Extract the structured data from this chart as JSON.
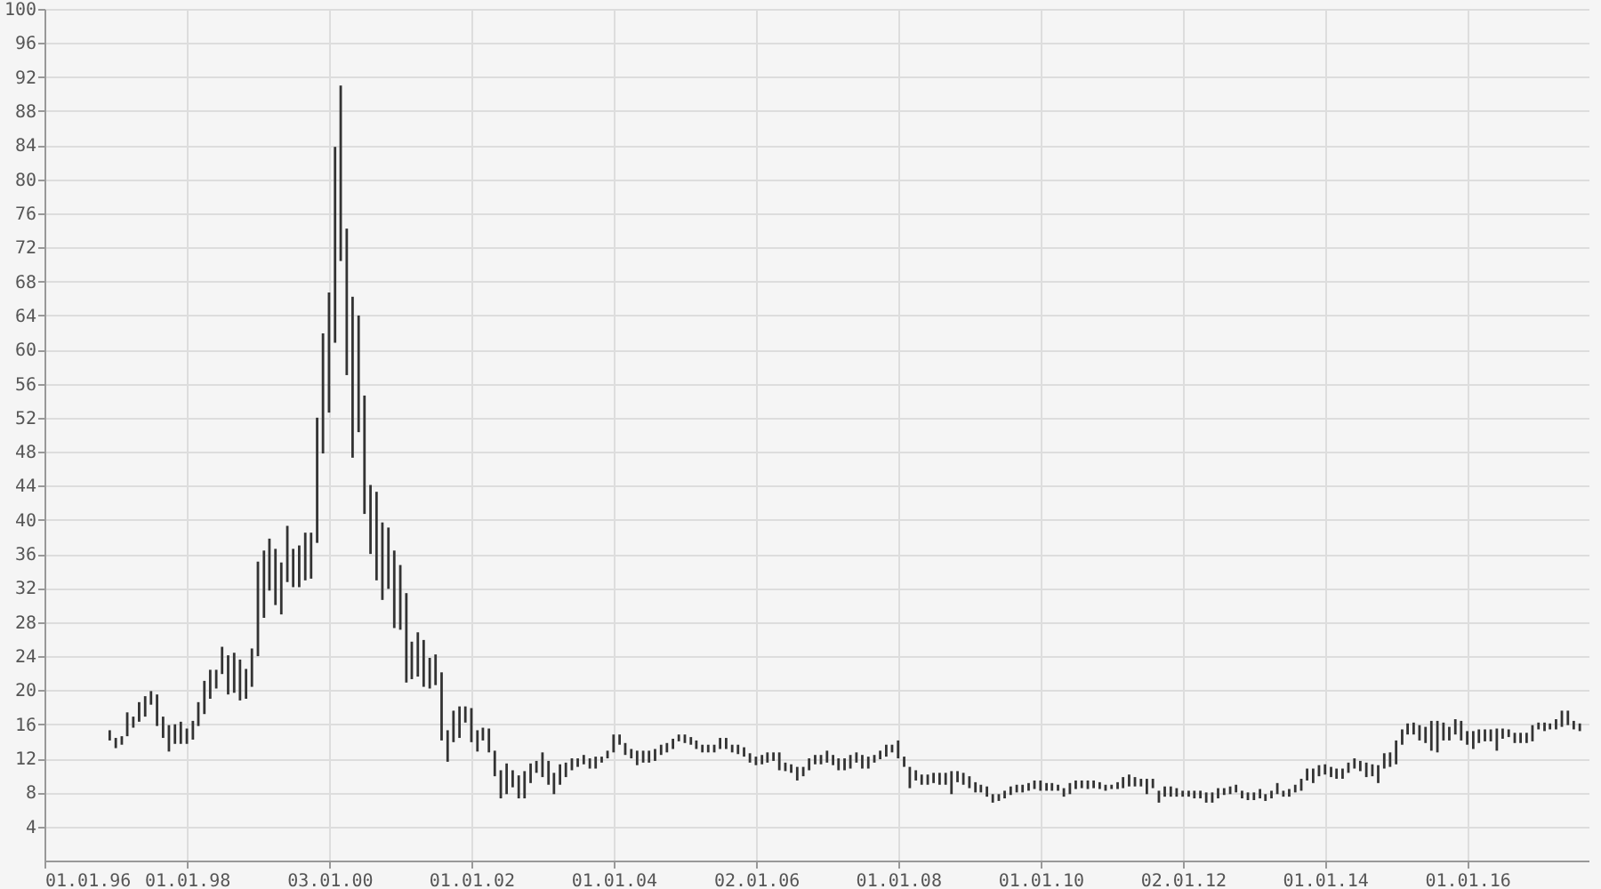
{
  "chart_data": {
    "type": "bar",
    "color": "#333333",
    "grid": true,
    "xlim": [
      "1996-01-01",
      "2017-09-15"
    ],
    "xticks": [
      {
        "value": "1996-01-01",
        "label": "01.01.96"
      },
      {
        "value": "1998-01-01",
        "label": "01.01.98"
      },
      {
        "value": "2000-01-03",
        "label": "03.01.00"
      },
      {
        "value": "2002-01-01",
        "label": "01.01.02"
      },
      {
        "value": "2004-01-01",
        "label": "01.01.04"
      },
      {
        "value": "2006-01-02",
        "label": "02.01.06"
      },
      {
        "value": "2008-01-01",
        "label": "01.01.08"
      },
      {
        "value": "2010-01-01",
        "label": "01.01.10"
      },
      {
        "value": "2012-01-02",
        "label": "02.01.12"
      },
      {
        "value": "2014-01-01",
        "label": "01.01.14"
      },
      {
        "value": "2016-01-01",
        "label": "01.01.16"
      }
    ],
    "ylim": [
      0,
      100
    ],
    "yticks": [
      4,
      8,
      12,
      16,
      20,
      24,
      28,
      32,
      36,
      40,
      44,
      48,
      52,
      56,
      60,
      64,
      68,
      72,
      76,
      80,
      84,
      88,
      92,
      96,
      100
    ],
    "x": [
      "1996-12",
      "1997-01",
      "1997-02",
      "1997-03",
      "1997-04",
      "1997-05",
      "1997-06",
      "1997-07",
      "1997-08",
      "1997-09",
      "1997-10",
      "1997-11",
      "1997-12",
      "1998-01",
      "1998-02",
      "1998-03",
      "1998-04",
      "1998-05",
      "1998-06",
      "1998-07",
      "1998-08",
      "1998-09",
      "1998-10",
      "1998-11",
      "1998-12",
      "1999-01",
      "1999-02",
      "1999-03",
      "1999-04",
      "1999-05",
      "1999-06",
      "1999-07",
      "1999-08",
      "1999-09",
      "1999-10",
      "1999-11",
      "1999-12",
      "2000-01",
      "2000-02",
      "2000-03",
      "2000-04",
      "2000-05",
      "2000-06",
      "2000-07",
      "2000-08",
      "2000-09",
      "2000-10",
      "2000-11",
      "2000-12",
      "2001-01",
      "2001-02",
      "2001-03",
      "2001-04",
      "2001-05",
      "2001-06",
      "2001-07",
      "2001-08",
      "2001-09",
      "2001-10",
      "2001-11",
      "2001-12",
      "2002-01",
      "2002-02",
      "2002-03",
      "2002-04",
      "2002-05",
      "2002-06",
      "2002-07",
      "2002-08",
      "2002-09",
      "2002-10",
      "2002-11",
      "2002-12",
      "2003-01",
      "2003-02",
      "2003-03",
      "2003-04",
      "2003-05",
      "2003-06",
      "2003-07",
      "2003-08",
      "2003-09",
      "2003-10",
      "2003-11",
      "2003-12",
      "2004-01",
      "2004-02",
      "2004-03",
      "2004-04",
      "2004-05",
      "2004-06",
      "2004-07",
      "2004-08",
      "2004-09",
      "2004-10",
      "2004-11",
      "2004-12",
      "2005-01",
      "2005-02",
      "2005-03",
      "2005-04",
      "2005-05",
      "2005-06",
      "2005-07",
      "2005-08",
      "2005-09",
      "2005-10",
      "2005-11",
      "2005-12",
      "2006-01",
      "2006-02",
      "2006-03",
      "2006-04",
      "2006-05",
      "2006-06",
      "2006-07",
      "2006-08",
      "2006-09",
      "2006-10",
      "2006-11",
      "2006-12",
      "2007-01",
      "2007-02",
      "2007-03",
      "2007-04",
      "2007-05",
      "2007-06",
      "2007-07",
      "2007-08",
      "2007-09",
      "2007-10",
      "2007-11",
      "2007-12",
      "2008-01",
      "2008-02",
      "2008-03",
      "2008-04",
      "2008-05",
      "2008-06",
      "2008-07",
      "2008-08",
      "2008-09",
      "2008-10",
      "2008-11",
      "2008-12",
      "2009-01",
      "2009-02",
      "2009-03",
      "2009-04",
      "2009-05",
      "2009-06",
      "2009-07",
      "2009-08",
      "2009-09",
      "2009-10",
      "2009-11",
      "2009-12",
      "2010-01",
      "2010-02",
      "2010-03",
      "2010-04",
      "2010-05",
      "2010-06",
      "2010-07",
      "2010-08",
      "2010-09",
      "2010-10",
      "2010-11",
      "2010-12",
      "2011-01",
      "2011-02",
      "2011-03",
      "2011-04",
      "2011-05",
      "2011-06",
      "2011-07",
      "2011-08",
      "2011-09",
      "2011-10",
      "2011-11",
      "2011-12",
      "2012-01",
      "2012-02",
      "2012-03",
      "2012-04",
      "2012-05",
      "2012-06",
      "2012-07",
      "2012-08",
      "2012-09",
      "2012-10",
      "2012-11",
      "2012-12",
      "2013-01",
      "2013-02",
      "2013-03",
      "2013-04",
      "2013-05",
      "2013-06",
      "2013-07",
      "2013-08",
      "2013-09",
      "2013-10",
      "2013-11",
      "2013-12",
      "2014-01",
      "2014-02",
      "2014-03",
      "2014-04",
      "2014-05",
      "2014-06",
      "2014-07",
      "2014-08",
      "2014-09",
      "2014-10",
      "2014-11",
      "2014-12",
      "2015-01",
      "2015-02",
      "2015-03",
      "2015-04",
      "2015-05",
      "2015-06",
      "2015-07",
      "2015-08",
      "2015-09",
      "2015-10",
      "2015-11",
      "2015-12",
      "2016-01",
      "2016-02",
      "2016-03",
      "2016-04",
      "2016-05",
      "2016-06",
      "2016-07",
      "2016-08",
      "2016-09",
      "2016-10",
      "2016-11",
      "2016-12",
      "2017-01",
      "2017-02",
      "2017-03",
      "2017-04",
      "2017-05",
      "2017-06",
      "2017-07",
      "2017-08"
    ],
    "base": [
      14.1,
      13.2,
      13.6,
      14.6,
      15.6,
      16.3,
      16.9,
      18.3,
      15.8,
      14.4,
      12.8,
      13.7,
      13.7,
      13.7,
      14.2,
      15.8,
      17.2,
      19.0,
      20.2,
      21.9,
      19.5,
      19.7,
      18.8,
      19.0,
      20.4,
      24.0,
      28.5,
      31.7,
      30.0,
      28.9,
      32.7,
      32.1,
      32.1,
      32.9,
      33.1,
      37.3,
      47.8,
      52.6,
      60.8,
      70.4,
      57.0,
      47.3,
      50.3,
      40.7,
      36.0,
      32.9,
      30.6,
      31.9,
      27.3,
      27.1,
      20.9,
      21.3,
      21.6,
      20.4,
      20.2,
      20.6,
      14.1,
      11.6,
      13.9,
      14.4,
      16.2,
      13.9,
      12.8,
      14.1,
      12.7,
      9.9,
      7.3,
      7.8,
      8.6,
      7.3,
      7.3,
      9.1,
      10.3,
      9.8,
      8.9,
      7.8,
      8.9,
      9.8,
      10.6,
      11.0,
      11.3,
      10.8,
      10.8,
      11.5,
      12.0,
      12.7,
      13.6,
      12.4,
      12.0,
      11.2,
      11.5,
      11.5,
      11.7,
      12.4,
      12.7,
      13.1,
      14.0,
      13.8,
      13.6,
      13.1,
      12.7,
      12.7,
      12.7,
      13.1,
      13.1,
      12.7,
      12.5,
      12.2,
      11.5,
      11.2,
      11.3,
      11.5,
      11.7,
      10.6,
      10.5,
      10.3,
      9.4,
      9.9,
      10.6,
      11.3,
      11.3,
      11.5,
      11.2,
      10.6,
      10.6,
      10.8,
      11.5,
      10.8,
      10.8,
      11.5,
      11.9,
      12.2,
      12.7,
      12.0,
      11.0,
      8.5,
      9.4,
      8.9,
      8.9,
      9.1,
      8.9,
      8.9,
      7.8,
      9.2,
      8.9,
      8.5,
      8.0,
      8.0,
      7.5,
      6.8,
      7.0,
      7.3,
      7.7,
      8.0,
      8.0,
      8.2,
      8.4,
      8.2,
      8.2,
      8.2,
      8.2,
      7.5,
      7.8,
      8.4,
      8.5,
      8.4,
      8.5,
      8.4,
      8.2,
      8.4,
      8.4,
      8.5,
      8.7,
      8.7,
      8.7,
      7.8,
      8.5,
      6.8,
      7.5,
      7.5,
      7.5,
      7.5,
      7.5,
      7.3,
      7.3,
      6.8,
      6.8,
      7.3,
      7.7,
      7.8,
      8.0,
      7.3,
      7.1,
      7.1,
      7.3,
      7.0,
      7.3,
      7.8,
      7.5,
      7.5,
      8.0,
      8.2,
      9.4,
      9.1,
      9.9,
      10.1,
      9.8,
      9.6,
      9.6,
      10.3,
      10.8,
      10.5,
      9.8,
      9.9,
      9.1,
      10.8,
      11.0,
      11.3,
      13.6,
      14.8,
      14.8,
      14.1,
      13.8,
      12.9,
      12.7,
      14.1,
      14.1,
      14.8,
      14.1,
      13.6,
      13.1,
      13.8,
      14.0,
      14.0,
      12.9,
      14.3,
      14.5,
      13.8,
      13.8,
      13.8,
      14.0,
      15.4,
      15.2,
      15.4,
      15.4,
      15.7,
      15.9,
      15.4,
      15.2
    ],
    "values": [
      1.2,
      1.2,
      1.0,
      2.8,
      1.3,
      2.3,
      2.4,
      1.6,
      3.7,
      2.5,
      3.1,
      2.3,
      2.6,
      1.8,
      2.2,
      2.8,
      3.9,
      3.4,
      2.2,
      3.2,
      4.6,
      4.7,
      4.8,
      3.5,
      4.5,
      11.1,
      7.9,
      6.1,
      6.6,
      6.1,
      6.6,
      4.5,
      4.9,
      5.6,
      5.4,
      14.7,
      14.1,
      14.1,
      23.0,
      20.6,
      17.2,
      18.9,
      13.7,
      13.9,
      8.1,
      10.4,
      9.1,
      7.2,
      9.1,
      7.6,
      10.5,
      4.4,
      5.2,
      5.5,
      3.6,
      3.6,
      8.0,
      3.7,
      3.7,
      3.7,
      1.9,
      4.0,
      2.5,
      1.5,
      2.8,
      3.0,
      3.3,
      3.6,
      2.0,
      2.7,
      3.2,
      2.3,
      1.4,
      2.9,
      2.8,
      2.5,
      2.4,
      1.7,
      1.4,
      1.0,
      1.1,
      1.2,
      1.4,
      0.7,
      0.9,
      2.1,
      1.2,
      1.4,
      1.1,
      1.7,
      1.4,
      1.4,
      1.4,
      1.2,
      1.1,
      1.2,
      0.8,
      1.0,
      0.9,
      1.0,
      0.9,
      0.9,
      0.9,
      1.3,
      1.3,
      0.9,
      1.1,
      1.1,
      1.1,
      1.0,
      1.1,
      1.2,
      1.0,
      2.1,
      1.0,
      1.0,
      1.6,
      1.1,
      1.4,
      1.1,
      1.1,
      1.4,
      1.2,
      1.4,
      1.4,
      1.6,
      1.2,
      1.6,
      1.4,
      0.9,
      1.0,
      1.4,
      0.9,
      2.1,
      1.2,
      2.5,
      1.2,
      1.2,
      1.2,
      1.2,
      1.4,
      1.4,
      2.7,
      1.3,
      1.4,
      1.4,
      1.2,
      0.9,
      1.2,
      1.0,
      0.8,
      0.9,
      1.0,
      0.9,
      0.9,
      0.9,
      1.0,
      1.2,
      0.9,
      0.9,
      0.7,
      1.0,
      1.3,
      1.0,
      0.9,
      1.0,
      0.9,
      0.8,
      0.7,
      0.5,
      0.8,
      1.3,
      1.4,
      1.1,
      0.9,
      1.8,
      1.1,
      1.4,
      1.2,
      1.2,
      1.0,
      0.7,
      0.7,
      0.9,
      0.9,
      1.2,
      1.2,
      1.2,
      0.8,
      0.9,
      0.9,
      0.9,
      0.9,
      0.9,
      1.1,
      0.8,
      0.9,
      1.3,
      0.7,
      0.9,
      0.9,
      1.4,
      1.4,
      1.7,
      1.3,
      1.2,
      1.2,
      1.2,
      1.2,
      1.2,
      1.2,
      1.2,
      1.7,
      1.4,
      2.1,
      1.8,
      1.7,
      2.8,
      1.8,
      1.3,
      1.4,
      1.8,
      1.9,
      3.5,
      3.7,
      2.1,
      1.6,
      1.8,
      2.3,
      1.6,
      2.1,
      1.6,
      1.4,
      1.4,
      2.6,
      1.2,
      0.9,
      1.2,
      1.2,
      1.2,
      1.9,
      0.8,
      1.0,
      0.7,
      1.2,
      1.9,
      1.7,
      1.0,
      0.9
    ]
  }
}
